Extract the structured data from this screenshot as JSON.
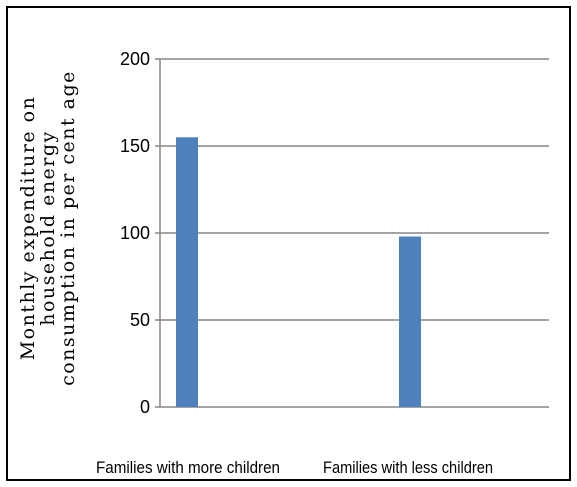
{
  "chart_data": {
    "type": "bar",
    "categories": [
      "Families with more children",
      "Families with less children"
    ],
    "values": [
      155,
      98
    ],
    "title": "",
    "xlabel": "",
    "ylabel_lines": [
      "Monthly expenditure on",
      "household energy",
      "consumption in per cent age"
    ],
    "ylim": [
      0,
      200
    ],
    "yticks": [
      0,
      50,
      100,
      150,
      200
    ],
    "grid": true,
    "legend": "none",
    "bar_color": "#4f81bd",
    "grid_color": "#868686"
  }
}
